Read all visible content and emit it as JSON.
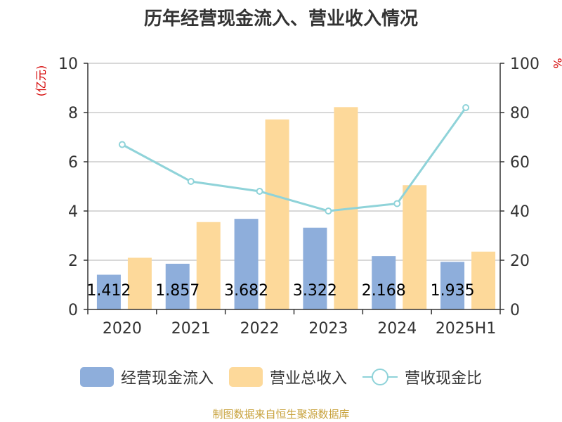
{
  "chart_data": {
    "type": "bar",
    "title": "历年经营现金流入、营业收入情况",
    "categories": [
      "2020",
      "2021",
      "2022",
      "2023",
      "2024",
      "2025H1"
    ],
    "series": [
      {
        "name": "经营现金流入",
        "type": "bar",
        "axis": "left",
        "color": "#8eaedb",
        "values": [
          1.412,
          1.857,
          3.682,
          3.322,
          2.168,
          1.935
        ]
      },
      {
        "name": "营业总收入",
        "type": "bar",
        "axis": "left",
        "color": "#fdd99a",
        "values": [
          2.1,
          3.55,
          7.72,
          8.22,
          5.05,
          2.35
        ]
      },
      {
        "name": "营收现金比",
        "type": "line",
        "axis": "right",
        "color": "#8fd3d9",
        "values": [
          67,
          52,
          48,
          40,
          43,
          82
        ]
      }
    ],
    "ylabel_left": "(亿元)",
    "ylabel_right": "%",
    "ylim_left": [
      0,
      10
    ],
    "ylim_right": [
      0,
      100
    ],
    "yticks_left": [
      "0",
      "2",
      "4",
      "6",
      "8",
      "10"
    ],
    "yticks_right": [
      "0",
      "20",
      "40",
      "60",
      "80",
      "100"
    ],
    "grid": true,
    "legend_position": "bottom"
  },
  "legend": {
    "cash_inflow": "经营现金流入",
    "revenue": "营业总收入",
    "ratio": "营收现金比"
  },
  "source": "制图数据来自恒生聚源数据库"
}
